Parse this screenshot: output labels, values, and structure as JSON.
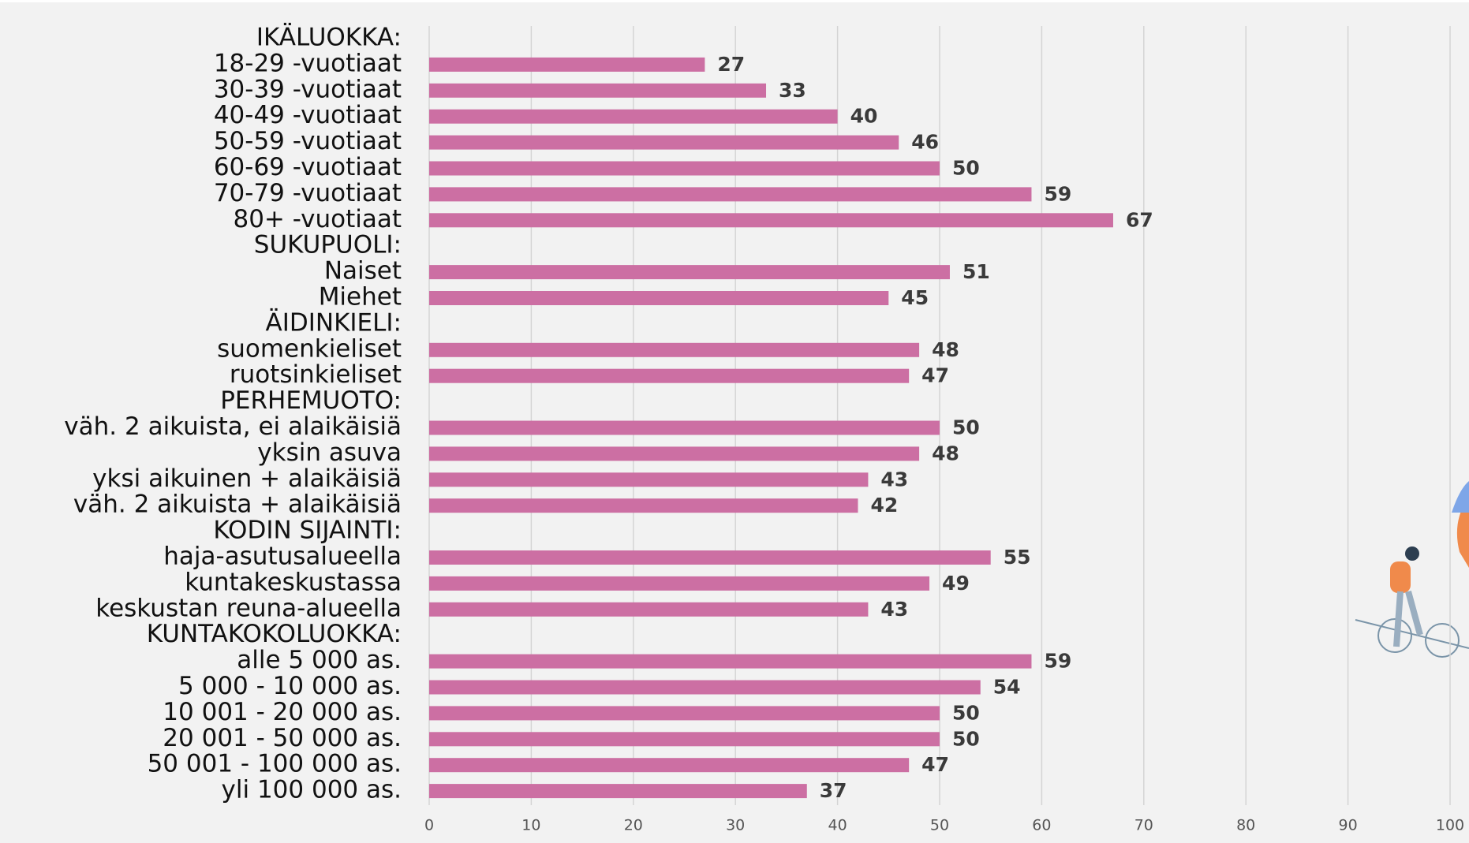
{
  "chart_data": {
    "type": "hbar",
    "categories": [
      "IKÄLUOKKA:",
      "18-29 -vuotiaat",
      "30-39 -vuotiaat",
      "40-49 -vuotiaat",
      "50-59 -vuotiaat",
      "60-69 -vuotiaat",
      "70-79 -vuotiaat",
      "80+ -vuotiaat",
      "SUKUPUOLI:",
      "Naiset",
      "Miehet",
      "ÄIDINKIELI:",
      "suomenkieliset",
      "ruotsinkieliset",
      "PERHEMUOTO:",
      "väh. 2 aikuista, ei alaikäisiä",
      "yksin asuva",
      "yksi aikuinen + alaikäisiä",
      "väh. 2 aikuista + alaikäisiä",
      "KODIN SIJAINTI:",
      "haja-asutusalueella",
      "kuntakeskustassa",
      "keskustan reuna-alueella",
      "KUNTAKOKOLUOKKA:",
      "alle 5 000 as.",
      "5 000 - 10 000 as.",
      "10 001 - 20 000 as.",
      "20 001 - 50 000 as.",
      "50 001 - 100 000 as.",
      "yli 100 000 as."
    ],
    "values": [
      null,
      27,
      33,
      40,
      46,
      50,
      59,
      67,
      null,
      51,
      45,
      null,
      48,
      47,
      null,
      50,
      48,
      43,
      42,
      null,
      55,
      49,
      43,
      null,
      59,
      54,
      50,
      50,
      47,
      37
    ],
    "color": "#cc6fa3",
    "xlim": [
      0,
      100
    ],
    "xticks": [
      0,
      10,
      20,
      30,
      40,
      50,
      60,
      70,
      80,
      90,
      100
    ],
    "grid": true
  }
}
